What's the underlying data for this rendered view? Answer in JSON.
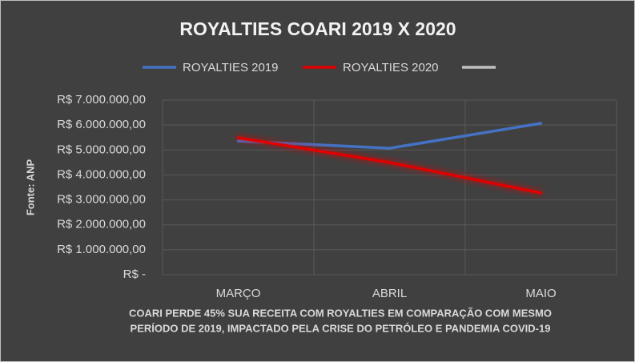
{
  "chart_data": {
    "type": "line",
    "title": "ROYALTIES COARI 2019 X 2020",
    "y_label": "Fonte: ANP",
    "annotation": [
      "COARI  PERDE  45%  SUA RECEITA COM ROYALTIES EM COMPARAÇÃO COM MESMO",
      "PERÍODO DE 2019, IMPACTADO PELA CRISE DO PETRÓLEO E  PANDEMIA COVID-19"
    ],
    "categories": [
      "MARÇO",
      "ABRIL",
      "MAIO"
    ],
    "series": [
      {
        "name": "ROYALTIES 2019",
        "color": "#4472c4",
        "values": [
          5360000,
          5070000,
          6070000
        ]
      },
      {
        "name": "ROYALTIES 2020",
        "color": "#e00000",
        "values": [
          5490000,
          4500000,
          3280000
        ]
      },
      {
        "name": null,
        "color": "#bfbfbf",
        "values": [
          null,
          null,
          null
        ]
      }
    ],
    "ylim": [
      0,
      7000000
    ],
    "yticks": [
      {
        "value": 0,
        "label": "R$ -"
      },
      {
        "value": 1000000,
        "label": "R$ 1.000.000,00"
      },
      {
        "value": 2000000,
        "label": "R$ 2.000.000,00"
      },
      {
        "value": 3000000,
        "label": "R$ 3.000.000,00"
      },
      {
        "value": 4000000,
        "label": "R$ 4.000.000,00"
      },
      {
        "value": 5000000,
        "label": "R$ 5.000.000,00"
      },
      {
        "value": 6000000,
        "label": "R$ 6.000.000,00"
      },
      {
        "value": 7000000,
        "label": "R$ 7.000.000,00"
      }
    ],
    "grid": true
  }
}
